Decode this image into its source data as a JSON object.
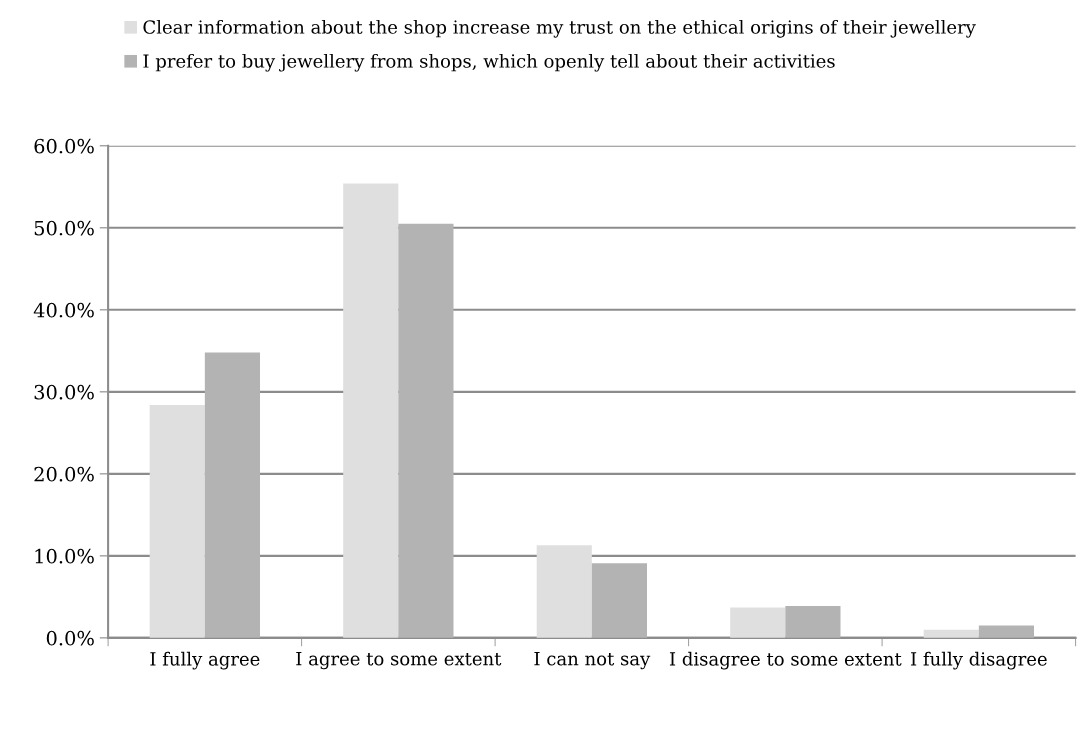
{
  "chart_data": {
    "type": "bar",
    "categories": [
      "I fully agree",
      "I agree to some extent",
      "I can not say",
      "I disagree to some extent",
      "I fully disagree"
    ],
    "series": [
      {
        "name": "Clear information about the shop increase my trust on the ethical origins of their jewellery",
        "color": "#dfdfdf",
        "values": [
          28.4,
          55.4,
          11.3,
          3.7,
          1.0
        ]
      },
      {
        "name": "I prefer to buy jewellery from shops, which openly tell about their activities",
        "color": "#b3b3b3",
        "values": [
          34.8,
          50.5,
          9.1,
          3.9,
          1.5
        ]
      }
    ],
    "ylim": [
      0,
      60
    ],
    "yticks": [
      {
        "value": 0,
        "label": "0.0%"
      },
      {
        "value": 10,
        "label": "10.0%"
      },
      {
        "value": 20,
        "label": "20.0%"
      },
      {
        "value": 30,
        "label": "30.0%"
      },
      {
        "value": 40,
        "label": "40.0%"
      },
      {
        "value": 50,
        "label": "50.0%"
      },
      {
        "value": 60,
        "label": "60.0%"
      }
    ],
    "grid": "y",
    "legend": "top"
  }
}
